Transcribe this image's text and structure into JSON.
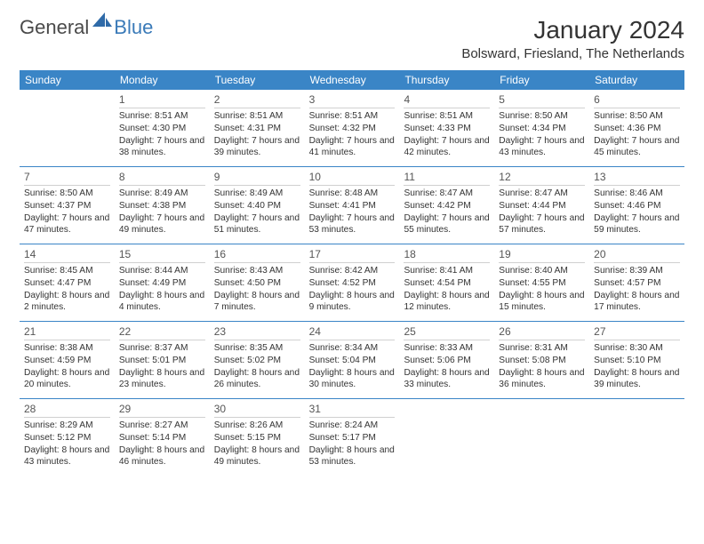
{
  "logo": {
    "general": "General",
    "blue": "Blue"
  },
  "title": "January 2024",
  "location": "Bolsward, Friesland, The Netherlands",
  "day_names": [
    "Sunday",
    "Monday",
    "Tuesday",
    "Wednesday",
    "Thursday",
    "Friday",
    "Saturday"
  ],
  "colors": {
    "header_bg": "#3a85c6",
    "header_text": "#ffffff",
    "text": "#333333",
    "logo_blue": "#3a7ab8"
  },
  "weeks": [
    [
      {
        "n": "",
        "sr": "",
        "ss": "",
        "dl": ""
      },
      {
        "n": "1",
        "sr": "Sunrise: 8:51 AM",
        "ss": "Sunset: 4:30 PM",
        "dl": "Daylight: 7 hours and 38 minutes."
      },
      {
        "n": "2",
        "sr": "Sunrise: 8:51 AM",
        "ss": "Sunset: 4:31 PM",
        "dl": "Daylight: 7 hours and 39 minutes."
      },
      {
        "n": "3",
        "sr": "Sunrise: 8:51 AM",
        "ss": "Sunset: 4:32 PM",
        "dl": "Daylight: 7 hours and 41 minutes."
      },
      {
        "n": "4",
        "sr": "Sunrise: 8:51 AM",
        "ss": "Sunset: 4:33 PM",
        "dl": "Daylight: 7 hours and 42 minutes."
      },
      {
        "n": "5",
        "sr": "Sunrise: 8:50 AM",
        "ss": "Sunset: 4:34 PM",
        "dl": "Daylight: 7 hours and 43 minutes."
      },
      {
        "n": "6",
        "sr": "Sunrise: 8:50 AM",
        "ss": "Sunset: 4:36 PM",
        "dl": "Daylight: 7 hours and 45 minutes."
      }
    ],
    [
      {
        "n": "7",
        "sr": "Sunrise: 8:50 AM",
        "ss": "Sunset: 4:37 PM",
        "dl": "Daylight: 7 hours and 47 minutes."
      },
      {
        "n": "8",
        "sr": "Sunrise: 8:49 AM",
        "ss": "Sunset: 4:38 PM",
        "dl": "Daylight: 7 hours and 49 minutes."
      },
      {
        "n": "9",
        "sr": "Sunrise: 8:49 AM",
        "ss": "Sunset: 4:40 PM",
        "dl": "Daylight: 7 hours and 51 minutes."
      },
      {
        "n": "10",
        "sr": "Sunrise: 8:48 AM",
        "ss": "Sunset: 4:41 PM",
        "dl": "Daylight: 7 hours and 53 minutes."
      },
      {
        "n": "11",
        "sr": "Sunrise: 8:47 AM",
        "ss": "Sunset: 4:42 PM",
        "dl": "Daylight: 7 hours and 55 minutes."
      },
      {
        "n": "12",
        "sr": "Sunrise: 8:47 AM",
        "ss": "Sunset: 4:44 PM",
        "dl": "Daylight: 7 hours and 57 minutes."
      },
      {
        "n": "13",
        "sr": "Sunrise: 8:46 AM",
        "ss": "Sunset: 4:46 PM",
        "dl": "Daylight: 7 hours and 59 minutes."
      }
    ],
    [
      {
        "n": "14",
        "sr": "Sunrise: 8:45 AM",
        "ss": "Sunset: 4:47 PM",
        "dl": "Daylight: 8 hours and 2 minutes."
      },
      {
        "n": "15",
        "sr": "Sunrise: 8:44 AM",
        "ss": "Sunset: 4:49 PM",
        "dl": "Daylight: 8 hours and 4 minutes."
      },
      {
        "n": "16",
        "sr": "Sunrise: 8:43 AM",
        "ss": "Sunset: 4:50 PM",
        "dl": "Daylight: 8 hours and 7 minutes."
      },
      {
        "n": "17",
        "sr": "Sunrise: 8:42 AM",
        "ss": "Sunset: 4:52 PM",
        "dl": "Daylight: 8 hours and 9 minutes."
      },
      {
        "n": "18",
        "sr": "Sunrise: 8:41 AM",
        "ss": "Sunset: 4:54 PM",
        "dl": "Daylight: 8 hours and 12 minutes."
      },
      {
        "n": "19",
        "sr": "Sunrise: 8:40 AM",
        "ss": "Sunset: 4:55 PM",
        "dl": "Daylight: 8 hours and 15 minutes."
      },
      {
        "n": "20",
        "sr": "Sunrise: 8:39 AM",
        "ss": "Sunset: 4:57 PM",
        "dl": "Daylight: 8 hours and 17 minutes."
      }
    ],
    [
      {
        "n": "21",
        "sr": "Sunrise: 8:38 AM",
        "ss": "Sunset: 4:59 PM",
        "dl": "Daylight: 8 hours and 20 minutes."
      },
      {
        "n": "22",
        "sr": "Sunrise: 8:37 AM",
        "ss": "Sunset: 5:01 PM",
        "dl": "Daylight: 8 hours and 23 minutes."
      },
      {
        "n": "23",
        "sr": "Sunrise: 8:35 AM",
        "ss": "Sunset: 5:02 PM",
        "dl": "Daylight: 8 hours and 26 minutes."
      },
      {
        "n": "24",
        "sr": "Sunrise: 8:34 AM",
        "ss": "Sunset: 5:04 PM",
        "dl": "Daylight: 8 hours and 30 minutes."
      },
      {
        "n": "25",
        "sr": "Sunrise: 8:33 AM",
        "ss": "Sunset: 5:06 PM",
        "dl": "Daylight: 8 hours and 33 minutes."
      },
      {
        "n": "26",
        "sr": "Sunrise: 8:31 AM",
        "ss": "Sunset: 5:08 PM",
        "dl": "Daylight: 8 hours and 36 minutes."
      },
      {
        "n": "27",
        "sr": "Sunrise: 8:30 AM",
        "ss": "Sunset: 5:10 PM",
        "dl": "Daylight: 8 hours and 39 minutes."
      }
    ],
    [
      {
        "n": "28",
        "sr": "Sunrise: 8:29 AM",
        "ss": "Sunset: 5:12 PM",
        "dl": "Daylight: 8 hours and 43 minutes."
      },
      {
        "n": "29",
        "sr": "Sunrise: 8:27 AM",
        "ss": "Sunset: 5:14 PM",
        "dl": "Daylight: 8 hours and 46 minutes."
      },
      {
        "n": "30",
        "sr": "Sunrise: 8:26 AM",
        "ss": "Sunset: 5:15 PM",
        "dl": "Daylight: 8 hours and 49 minutes."
      },
      {
        "n": "31",
        "sr": "Sunrise: 8:24 AM",
        "ss": "Sunset: 5:17 PM",
        "dl": "Daylight: 8 hours and 53 minutes."
      },
      {
        "n": "",
        "sr": "",
        "ss": "",
        "dl": ""
      },
      {
        "n": "",
        "sr": "",
        "ss": "",
        "dl": ""
      },
      {
        "n": "",
        "sr": "",
        "ss": "",
        "dl": ""
      }
    ]
  ]
}
